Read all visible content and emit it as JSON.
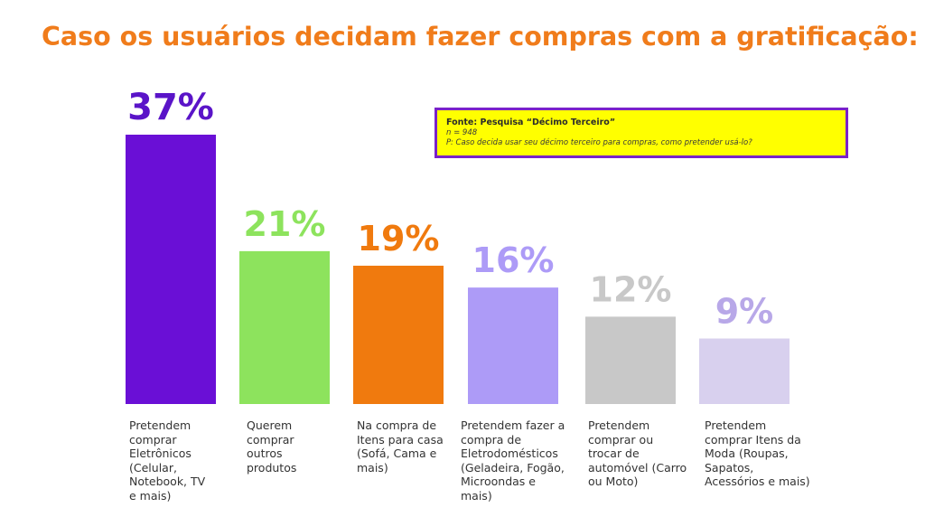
{
  "title": "Caso os usuários decidam fazer compras com a gratificação:",
  "source": {
    "title": "Fonte: Pesquisa “Décimo Terceiro”",
    "n": "n = 948",
    "question": "P:  Caso decida usar seu décimo terceiro para compras, como pretender usá-lo?"
  },
  "chart_data": {
    "type": "bar",
    "ylabel": "",
    "xlabel": "",
    "ylim": [
      0,
      37
    ],
    "categories": [
      [
        "Pretendem",
        "comprar",
        "Eletrônicos",
        "(Celular,",
        "Notebook, TV",
        "e mais)"
      ],
      [
        "Querem",
        "comprar",
        "outros",
        "produtos"
      ],
      [
        "Na compra de",
        "Itens para casa",
        "(Sofá, Cama e",
        "mais)"
      ],
      [
        "Pretendem fazer a",
        "compra de",
        "Eletrodomésticos",
        "(Geladeira, Fogão,",
        "Microondas e",
        "mais)"
      ],
      [
        "Pretendem",
        "comprar ou",
        "trocar de",
        "automóvel (Carro",
        "ou Moto)"
      ],
      [
        "Pretendem",
        "comprar Itens da",
        "Moda (Roupas,",
        "Sapatos,",
        "Acessórios e mais)"
      ]
    ],
    "values": [
      37,
      21,
      19,
      16,
      12,
      9
    ],
    "value_labels": [
      "37%",
      "21%",
      "19%",
      "16%",
      "12%",
      "9%"
    ],
    "colors": [
      "#6a0fd6",
      "#8de35d",
      "#f07a0e",
      "#ad9bf7",
      "#c8c8c8",
      "#d8d0ee"
    ],
    "label_colors": [
      "#5a14c8",
      "#8de35d",
      "#f07a0e",
      "#ad9bf7",
      "#c8c8c8",
      "#b8a8e8"
    ]
  }
}
